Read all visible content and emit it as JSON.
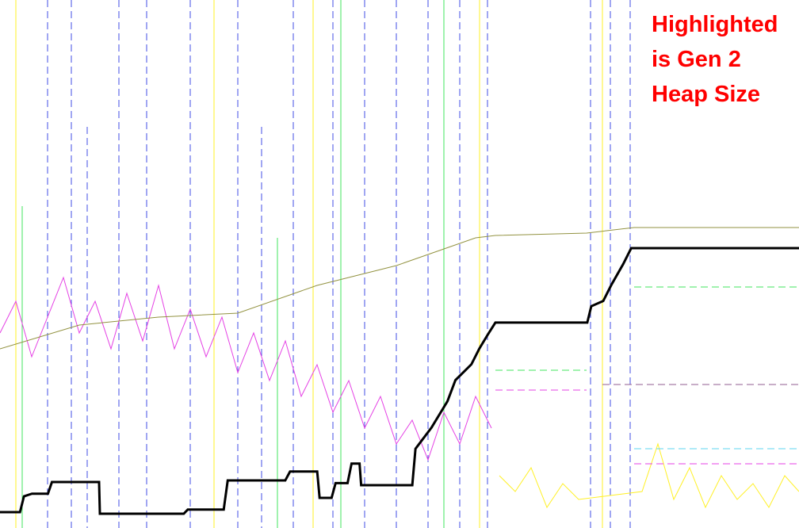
{
  "chart_data": {
    "type": "line",
    "annotation": [
      "Highlighted",
      "is Gen 2",
      "Heap Size"
    ],
    "x": [
      0,
      2.5,
      3,
      4,
      6,
      6.5,
      12.4,
      12.5,
      23,
      23.5,
      28,
      28.5,
      35.7,
      36.3,
      39.7,
      40,
      41.5,
      42,
      43.5,
      44,
      45,
      45.2,
      51.6,
      52,
      54,
      56,
      57,
      59,
      60,
      61,
      62,
      73.5,
      74,
      75.5,
      76.5,
      78,
      79,
      100
    ],
    "xlim": [
      0,
      100
    ],
    "ylim": [
      0,
      100
    ],
    "series": [
      {
        "color": "#000000",
        "values": [
          3,
          3,
          6,
          6.5,
          6.5,
          8.7,
          8.7,
          2.7,
          2.7,
          3.5,
          3.5,
          9,
          9,
          10.7,
          10.7,
          5.7,
          5.7,
          8.5,
          8.5,
          12.2,
          12.2,
          8.1,
          8.1,
          15,
          19,
          24,
          28,
          31,
          34,
          36.5,
          38.9,
          38.9,
          42,
          43,
          46,
          50,
          53,
          53
        ]
      }
    ]
  }
}
